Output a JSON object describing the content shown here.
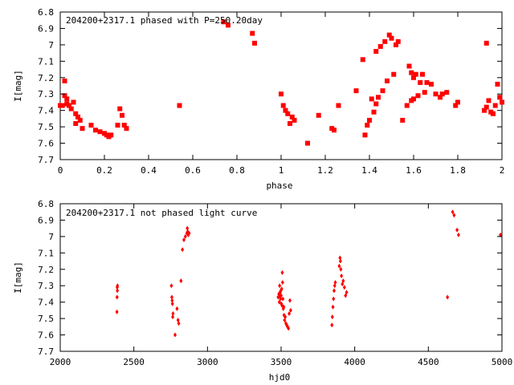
{
  "colors": {
    "marker": "#ff0000",
    "axis": "#000000",
    "background": "#ffffff"
  },
  "chart_data": [
    {
      "type": "scatter",
      "title": "204200+2317.1 phased with P=250.20day",
      "xlabel": "phase",
      "ylabel": "I[mag]",
      "xlim": [
        0,
        2
      ],
      "ylim": [
        7.7,
        6.8
      ],
      "y_inverted": true,
      "grid": false,
      "legend": "none",
      "marker": "filled-square-large",
      "x_ticks": [
        0,
        0.2,
        0.4,
        0.6,
        0.8,
        1,
        1.2,
        1.4,
        1.6,
        1.8,
        2
      ],
      "x_tick_labels": [
        "0",
        "0.2",
        "0.4",
        "0.6",
        "0.8",
        "1",
        "1.2",
        "1.4",
        "1.6",
        "1.8",
        "2"
      ],
      "y_ticks": [
        6.8,
        6.9,
        7,
        7.1,
        7.2,
        7.3,
        7.4,
        7.5,
        7.6,
        7.7
      ],
      "y_tick_labels": [
        "6.8",
        "6.9",
        "7",
        "7.1",
        "7.2",
        "7.3",
        "7.4",
        "7.5",
        "7.6",
        "7.7"
      ],
      "points": [
        [
          0.0,
          7.37
        ],
        [
          0.01,
          7.37
        ],
        [
          0.02,
          7.22
        ],
        [
          0.02,
          7.31
        ],
        [
          0.03,
          7.33
        ],
        [
          0.03,
          7.36
        ],
        [
          0.04,
          7.37
        ],
        [
          0.05,
          7.39
        ],
        [
          0.06,
          7.35
        ],
        [
          0.07,
          7.42
        ],
        [
          0.07,
          7.48
        ],
        [
          0.08,
          7.44
        ],
        [
          0.09,
          7.46
        ],
        [
          0.1,
          7.51
        ],
        [
          0.14,
          7.49
        ],
        [
          0.16,
          7.52
        ],
        [
          0.18,
          7.53
        ],
        [
          0.2,
          7.54
        ],
        [
          0.21,
          7.55
        ],
        [
          0.22,
          7.56
        ],
        [
          0.23,
          7.55
        ],
        [
          0.26,
          7.49
        ],
        [
          0.27,
          7.39
        ],
        [
          0.28,
          7.43
        ],
        [
          0.29,
          7.49
        ],
        [
          0.3,
          7.51
        ],
        [
          0.54,
          7.37
        ],
        [
          0.74,
          6.86
        ],
        [
          0.76,
          6.88
        ],
        [
          0.87,
          6.93
        ],
        [
          0.88,
          6.99
        ],
        [
          1.0,
          7.3
        ],
        [
          1.01,
          7.37
        ],
        [
          1.02,
          7.4
        ],
        [
          1.03,
          7.42
        ],
        [
          1.04,
          7.48
        ],
        [
          1.05,
          7.44
        ],
        [
          1.06,
          7.46
        ],
        [
          1.12,
          7.6
        ],
        [
          1.17,
          7.43
        ],
        [
          1.23,
          7.51
        ],
        [
          1.24,
          7.52
        ],
        [
          1.26,
          7.37
        ],
        [
          1.34,
          7.28
        ],
        [
          1.37,
          7.09
        ],
        [
          1.38,
          7.55
        ],
        [
          1.39,
          7.49
        ],
        [
          1.4,
          7.46
        ],
        [
          1.41,
          7.33
        ],
        [
          1.42,
          7.41
        ],
        [
          1.43,
          7.36
        ],
        [
          1.43,
          7.04
        ],
        [
          1.44,
          7.32
        ],
        [
          1.45,
          7.01
        ],
        [
          1.46,
          7.28
        ],
        [
          1.47,
          6.98
        ],
        [
          1.48,
          7.22
        ],
        [
          1.49,
          6.94
        ],
        [
          1.5,
          6.96
        ],
        [
          1.51,
          7.18
        ],
        [
          1.52,
          7.0
        ],
        [
          1.53,
          6.98
        ],
        [
          1.55,
          7.46
        ],
        [
          1.57,
          7.37
        ],
        [
          1.58,
          7.13
        ],
        [
          1.59,
          7.34
        ],
        [
          1.59,
          7.17
        ],
        [
          1.6,
          7.2
        ],
        [
          1.6,
          7.33
        ],
        [
          1.61,
          7.18
        ],
        [
          1.62,
          7.31
        ],
        [
          1.63,
          7.23
        ],
        [
          1.64,
          7.18
        ],
        [
          1.65,
          7.29
        ],
        [
          1.66,
          7.23
        ],
        [
          1.68,
          7.24
        ],
        [
          1.7,
          7.3
        ],
        [
          1.72,
          7.32
        ],
        [
          1.73,
          7.3
        ],
        [
          1.75,
          7.29
        ],
        [
          1.79,
          7.37
        ],
        [
          1.8,
          7.35
        ],
        [
          1.92,
          7.4
        ],
        [
          1.93,
          6.99
        ],
        [
          1.93,
          7.38
        ],
        [
          1.94,
          7.34
        ],
        [
          1.95,
          7.41
        ],
        [
          1.96,
          7.42
        ],
        [
          1.97,
          7.37
        ],
        [
          1.98,
          7.24
        ],
        [
          1.99,
          7.32
        ],
        [
          2.0,
          7.35
        ]
      ]
    },
    {
      "type": "scatter",
      "title": "204200+2317.1 not phased light curve",
      "xlabel": "hjd0",
      "ylabel": "I[mag]",
      "xlim": [
        2000,
        5000
      ],
      "ylim": [
        7.7,
        6.8
      ],
      "y_inverted": true,
      "grid": false,
      "legend": "none",
      "marker": "filled-diamond-small",
      "x_ticks": [
        2000,
        2500,
        3000,
        3500,
        4000,
        4500,
        5000
      ],
      "x_tick_labels": [
        "2000",
        "2500",
        "3000",
        "3500",
        "4000",
        "4500",
        "5000"
      ],
      "y_ticks": [
        6.8,
        6.9,
        7,
        7.1,
        7.2,
        7.3,
        7.4,
        7.5,
        7.6,
        7.7
      ],
      "y_tick_labels": [
        "6.8",
        "6.9",
        "7",
        "7.1",
        "7.2",
        "7.3",
        "7.4",
        "7.5",
        "7.6",
        "7.7"
      ],
      "points": [
        [
          2385,
          7.46
        ],
        [
          2386,
          7.37
        ],
        [
          2387,
          7.31
        ],
        [
          2388,
          7.33
        ],
        [
          2389,
          7.3
        ],
        [
          2755,
          7.3
        ],
        [
          2758,
          7.37
        ],
        [
          2760,
          7.39
        ],
        [
          2762,
          7.41
        ],
        [
          2764,
          7.49
        ],
        [
          2766,
          7.47
        ],
        [
          2780,
          7.6
        ],
        [
          2793,
          7.44
        ],
        [
          2800,
          7.51
        ],
        [
          2805,
          7.53
        ],
        [
          2820,
          7.27
        ],
        [
          2830,
          7.08
        ],
        [
          2840,
          7.02
        ],
        [
          2850,
          7.0
        ],
        [
          2860,
          6.98
        ],
        [
          2863,
          6.95
        ],
        [
          2866,
          6.97
        ],
        [
          2870,
          6.99
        ],
        [
          2875,
          6.98
        ],
        [
          3480,
          7.37
        ],
        [
          3485,
          7.35
        ],
        [
          3488,
          7.4
        ],
        [
          3490,
          7.3
        ],
        [
          3492,
          7.36
        ],
        [
          3494,
          7.34
        ],
        [
          3496,
          7.38
        ],
        [
          3498,
          7.33
        ],
        [
          3500,
          7.36
        ],
        [
          3502,
          7.41
        ],
        [
          3504,
          7.32
        ],
        [
          3506,
          7.42
        ],
        [
          3508,
          7.22
        ],
        [
          3510,
          7.28
        ],
        [
          3512,
          7.38
        ],
        [
          3515,
          7.44
        ],
        [
          3518,
          7.43
        ],
        [
          3520,
          7.48
        ],
        [
          3524,
          7.51
        ],
        [
          3528,
          7.49
        ],
        [
          3533,
          7.53
        ],
        [
          3538,
          7.54
        ],
        [
          3544,
          7.55
        ],
        [
          3550,
          7.56
        ],
        [
          3555,
          7.47
        ],
        [
          3560,
          7.39
        ],
        [
          3565,
          7.45
        ],
        [
          3845,
          7.54
        ],
        [
          3848,
          7.49
        ],
        [
          3852,
          7.43
        ],
        [
          3856,
          7.38
        ],
        [
          3860,
          7.33
        ],
        [
          3864,
          7.3
        ],
        [
          3868,
          7.28
        ],
        [
          3895,
          7.18
        ],
        [
          3900,
          7.13
        ],
        [
          3903,
          7.15
        ],
        [
          3906,
          7.2
        ],
        [
          3910,
          7.24
        ],
        [
          3916,
          7.29
        ],
        [
          3922,
          7.27
        ],
        [
          3930,
          7.31
        ],
        [
          3938,
          7.36
        ],
        [
          3945,
          7.34
        ],
        [
          4630,
          7.37
        ],
        [
          4665,
          6.85
        ],
        [
          4675,
          6.87
        ],
        [
          4695,
          6.96
        ],
        [
          4705,
          6.99
        ],
        [
          4990,
          6.99
        ]
      ]
    }
  ]
}
